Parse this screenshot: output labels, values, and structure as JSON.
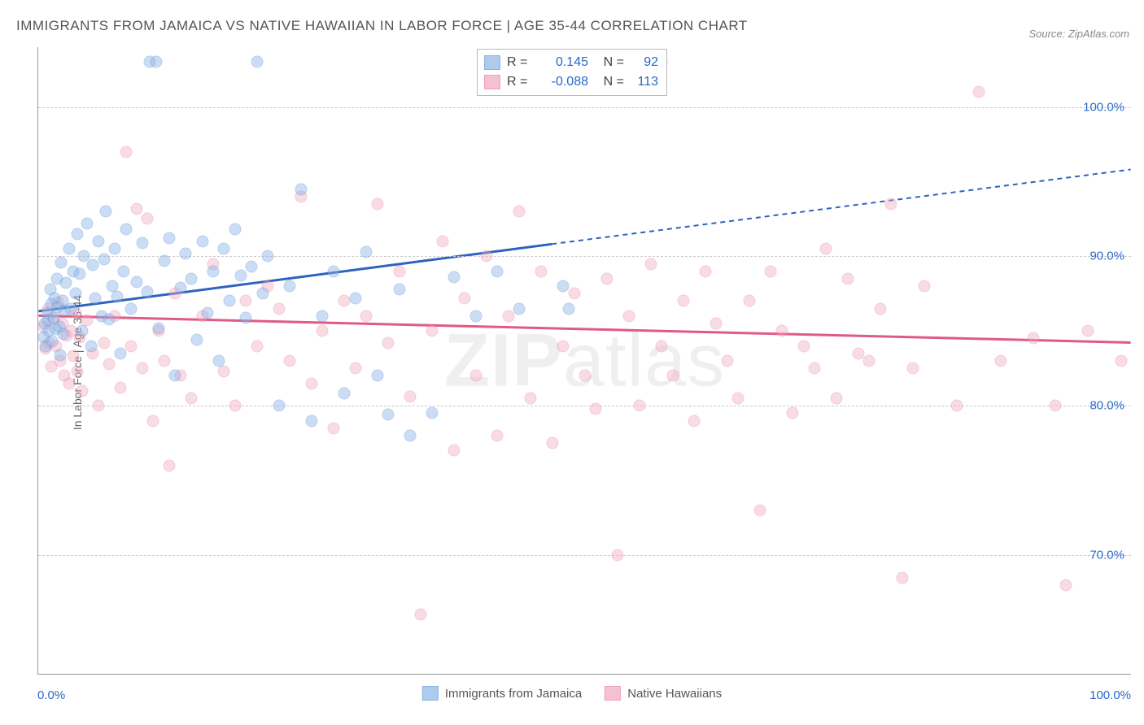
{
  "chart": {
    "type": "scatter",
    "title": "IMMIGRANTS FROM JAMAICA VS NATIVE HAWAIIAN IN LABOR FORCE | AGE 35-44 CORRELATION CHART",
    "source": "Source: ZipAtlas.com",
    "watermark": "ZIPatlas",
    "ylabel": "In Labor Force | Age 35-44",
    "xlim": [
      0,
      100
    ],
    "ylim": [
      62,
      104
    ],
    "xtick_labels": [
      "0.0%",
      "100.0%"
    ],
    "yticks": [
      70,
      80,
      90,
      100
    ],
    "ytick_labels": [
      "70.0%",
      "80.0%",
      "90.0%",
      "100.0%"
    ],
    "background_color": "#ffffff",
    "grid_color": "#cccccc",
    "axis_color": "#999999",
    "tick_fontsize": 15,
    "tick_color": "#2968c8",
    "title_fontsize": 17,
    "title_color": "#555555",
    "label_fontsize": 14,
    "marker_radius": 7.5,
    "series": [
      {
        "name": "Immigrants from Jamaica",
        "short": "jamaica",
        "fill_color": "#8db6e8",
        "fill_opacity": 0.45,
        "stroke_color": "#5f96d6",
        "line_color": "#2d63c0",
        "line_width": 3,
        "R": 0.145,
        "N": 92,
        "regression": {
          "x1": 0,
          "y1": 86.3,
          "x2_solid": 47,
          "y2_solid": 90.8,
          "x2_dashed": 100,
          "y2_dashed": 95.8
        },
        "points": [
          [
            0.5,
            84.6
          ],
          [
            0.6,
            85.5
          ],
          [
            0.7,
            84.0
          ],
          [
            0.8,
            86.2
          ],
          [
            0.9,
            85.7
          ],
          [
            1.0,
            85.0
          ],
          [
            1.1,
            87.8
          ],
          [
            1.2,
            86.8
          ],
          [
            1.3,
            84.3
          ],
          [
            1.4,
            85.9
          ],
          [
            1.5,
            87.2
          ],
          [
            1.6,
            85.1
          ],
          [
            1.7,
            88.5
          ],
          [
            1.8,
            86.6
          ],
          [
            1.9,
            85.3
          ],
          [
            2.0,
            83.4
          ],
          [
            2.1,
            89.6
          ],
          [
            2.2,
            87.0
          ],
          [
            2.3,
            84.8
          ],
          [
            2.4,
            86.4
          ],
          [
            2.5,
            88.2
          ],
          [
            2.8,
            90.5
          ],
          [
            3.0,
            86.5
          ],
          [
            3.2,
            89.0
          ],
          [
            3.4,
            87.5
          ],
          [
            3.6,
            91.5
          ],
          [
            3.8,
            88.8
          ],
          [
            4.0,
            85.0
          ],
          [
            4.2,
            90.0
          ],
          [
            4.5,
            92.2
          ],
          [
            4.8,
            84.0
          ],
          [
            5.0,
            89.4
          ],
          [
            5.2,
            87.2
          ],
          [
            5.5,
            91.0
          ],
          [
            5.8,
            86.0
          ],
          [
            6.0,
            89.8
          ],
          [
            6.2,
            93.0
          ],
          [
            6.5,
            85.8
          ],
          [
            6.8,
            88.0
          ],
          [
            7.0,
            90.5
          ],
          [
            7.2,
            87.3
          ],
          [
            7.5,
            83.5
          ],
          [
            7.8,
            89.0
          ],
          [
            8.0,
            91.8
          ],
          [
            8.5,
            86.5
          ],
          [
            9.0,
            88.3
          ],
          [
            9.5,
            90.9
          ],
          [
            10.0,
            87.6
          ],
          [
            10.2,
            103.0
          ],
          [
            10.8,
            103.0
          ],
          [
            11.0,
            85.2
          ],
          [
            11.5,
            89.7
          ],
          [
            12.0,
            91.2
          ],
          [
            12.5,
            82.0
          ],
          [
            13.0,
            87.9
          ],
          [
            13.5,
            90.2
          ],
          [
            14.0,
            88.5
          ],
          [
            14.5,
            84.4
          ],
          [
            15.0,
            91.0
          ],
          [
            15.5,
            86.2
          ],
          [
            16.0,
            89.0
          ],
          [
            16.5,
            83.0
          ],
          [
            17.0,
            90.5
          ],
          [
            17.5,
            87.0
          ],
          [
            18.0,
            91.8
          ],
          [
            18.5,
            88.7
          ],
          [
            19.0,
            85.9
          ],
          [
            19.5,
            89.3
          ],
          [
            20.0,
            103.0
          ],
          [
            20.5,
            87.5
          ],
          [
            21.0,
            90.0
          ],
          [
            22.0,
            80.0
          ],
          [
            23.0,
            88.0
          ],
          [
            24.0,
            94.5
          ],
          [
            25.0,
            79.0
          ],
          [
            26.0,
            86.0
          ],
          [
            27.0,
            89.0
          ],
          [
            28.0,
            80.8
          ],
          [
            29.0,
            87.2
          ],
          [
            30.0,
            90.3
          ],
          [
            31.0,
            82.0
          ],
          [
            32.0,
            79.4
          ],
          [
            33.0,
            87.8
          ],
          [
            34.0,
            78.0
          ],
          [
            36.0,
            79.5
          ],
          [
            38.0,
            88.6
          ],
          [
            40.0,
            86.0
          ],
          [
            42.0,
            89.0
          ],
          [
            44.0,
            86.5
          ],
          [
            48.0,
            88.0
          ],
          [
            48.5,
            86.5
          ],
          [
            57.0,
            103.0
          ]
        ]
      },
      {
        "name": "Native Hawaiians",
        "short": "hawaiians",
        "fill_color": "#f2a8bd",
        "fill_opacity": 0.4,
        "stroke_color": "#e77da0",
        "line_color": "#e05a87",
        "line_width": 3,
        "R": -0.088,
        "N": 113,
        "regression": {
          "x1": 0,
          "y1": 86.0,
          "x2_solid": 100,
          "y2_solid": 84.2,
          "x2_dashed": 100,
          "y2_dashed": 84.2
        },
        "points": [
          [
            0.5,
            85.3
          ],
          [
            0.7,
            83.8
          ],
          [
            0.9,
            86.5
          ],
          [
            1.0,
            84.2
          ],
          [
            1.2,
            82.6
          ],
          [
            1.4,
            85.8
          ],
          [
            1.6,
            84.0
          ],
          [
            1.8,
            86.9
          ],
          [
            2.0,
            83.0
          ],
          [
            2.2,
            85.5
          ],
          [
            2.4,
            82.0
          ],
          [
            2.6,
            84.7
          ],
          [
            2.8,
            81.5
          ],
          [
            3.0,
            85.0
          ],
          [
            3.2,
            83.3
          ],
          [
            3.4,
            86.2
          ],
          [
            3.6,
            82.3
          ],
          [
            3.8,
            84.6
          ],
          [
            4.0,
            81.0
          ],
          [
            4.5,
            85.7
          ],
          [
            5.0,
            83.5
          ],
          [
            5.5,
            80.0
          ],
          [
            6.0,
            84.2
          ],
          [
            6.5,
            82.8
          ],
          [
            7.0,
            86.0
          ],
          [
            7.5,
            81.2
          ],
          [
            8.0,
            97.0
          ],
          [
            8.5,
            84.0
          ],
          [
            9.0,
            93.2
          ],
          [
            9.5,
            82.5
          ],
          [
            10.0,
            92.5
          ],
          [
            10.5,
            79.0
          ],
          [
            11.0,
            85.0
          ],
          [
            11.5,
            83.0
          ],
          [
            12.0,
            76.0
          ],
          [
            12.5,
            87.5
          ],
          [
            13.0,
            82.0
          ],
          [
            14.0,
            80.5
          ],
          [
            15.0,
            86.0
          ],
          [
            16.0,
            89.5
          ],
          [
            17.0,
            82.3
          ],
          [
            18.0,
            80.0
          ],
          [
            19.0,
            87.0
          ],
          [
            20.0,
            84.0
          ],
          [
            21.0,
            88.0
          ],
          [
            22.0,
            86.5
          ],
          [
            23.0,
            83.0
          ],
          [
            24.0,
            94.0
          ],
          [
            25.0,
            81.5
          ],
          [
            26.0,
            85.0
          ],
          [
            27.0,
            78.5
          ],
          [
            28.0,
            87.0
          ],
          [
            29.0,
            82.5
          ],
          [
            30.0,
            86.0
          ],
          [
            31.0,
            93.5
          ],
          [
            32.0,
            84.2
          ],
          [
            33.0,
            89.0
          ],
          [
            34.0,
            80.6
          ],
          [
            35.0,
            66.0
          ],
          [
            36.0,
            85.0
          ],
          [
            37.0,
            91.0
          ],
          [
            38.0,
            77.0
          ],
          [
            39.0,
            87.2
          ],
          [
            40.0,
            82.0
          ],
          [
            41.0,
            90.0
          ],
          [
            42.0,
            78.0
          ],
          [
            43.0,
            86.0
          ],
          [
            44.0,
            93.0
          ],
          [
            45.0,
            80.5
          ],
          [
            46.0,
            89.0
          ],
          [
            47.0,
            77.5
          ],
          [
            48.0,
            84.0
          ],
          [
            49.0,
            87.5
          ],
          [
            50.0,
            82.0
          ],
          [
            51.0,
            79.8
          ],
          [
            52.0,
            88.5
          ],
          [
            53.0,
            70.0
          ],
          [
            54.0,
            86.0
          ],
          [
            55.0,
            80.0
          ],
          [
            56.0,
            89.5
          ],
          [
            57.0,
            84.0
          ],
          [
            58.0,
            82.0
          ],
          [
            59.0,
            87.0
          ],
          [
            60.0,
            79.0
          ],
          [
            61.0,
            89.0
          ],
          [
            62.0,
            85.5
          ],
          [
            63.0,
            83.0
          ],
          [
            64.0,
            80.5
          ],
          [
            65.0,
            87.0
          ],
          [
            66.0,
            73.0
          ],
          [
            67.0,
            89.0
          ],
          [
            68.0,
            85.0
          ],
          [
            69.0,
            79.5
          ],
          [
            70.0,
            84.0
          ],
          [
            71.0,
            82.5
          ],
          [
            72.0,
            90.5
          ],
          [
            73.0,
            80.5
          ],
          [
            74.0,
            88.5
          ],
          [
            75.0,
            83.5
          ],
          [
            76.0,
            83.0
          ],
          [
            77.0,
            86.5
          ],
          [
            78.0,
            93.5
          ],
          [
            79.0,
            68.5
          ],
          [
            80.0,
            82.5
          ],
          [
            81.0,
            88.0
          ],
          [
            84.0,
            80.0
          ],
          [
            86.0,
            101.0
          ],
          [
            88.0,
            83.0
          ],
          [
            91.0,
            84.5
          ],
          [
            93.0,
            80.0
          ],
          [
            94.0,
            68.0
          ],
          [
            96.0,
            85.0
          ],
          [
            99.0,
            83.0
          ]
        ]
      }
    ],
    "stats_legend": {
      "R_label": "R =",
      "N_label": "N ="
    },
    "bottom_legend_labels": [
      "Immigrants from Jamaica",
      "Native Hawaiians"
    ]
  }
}
